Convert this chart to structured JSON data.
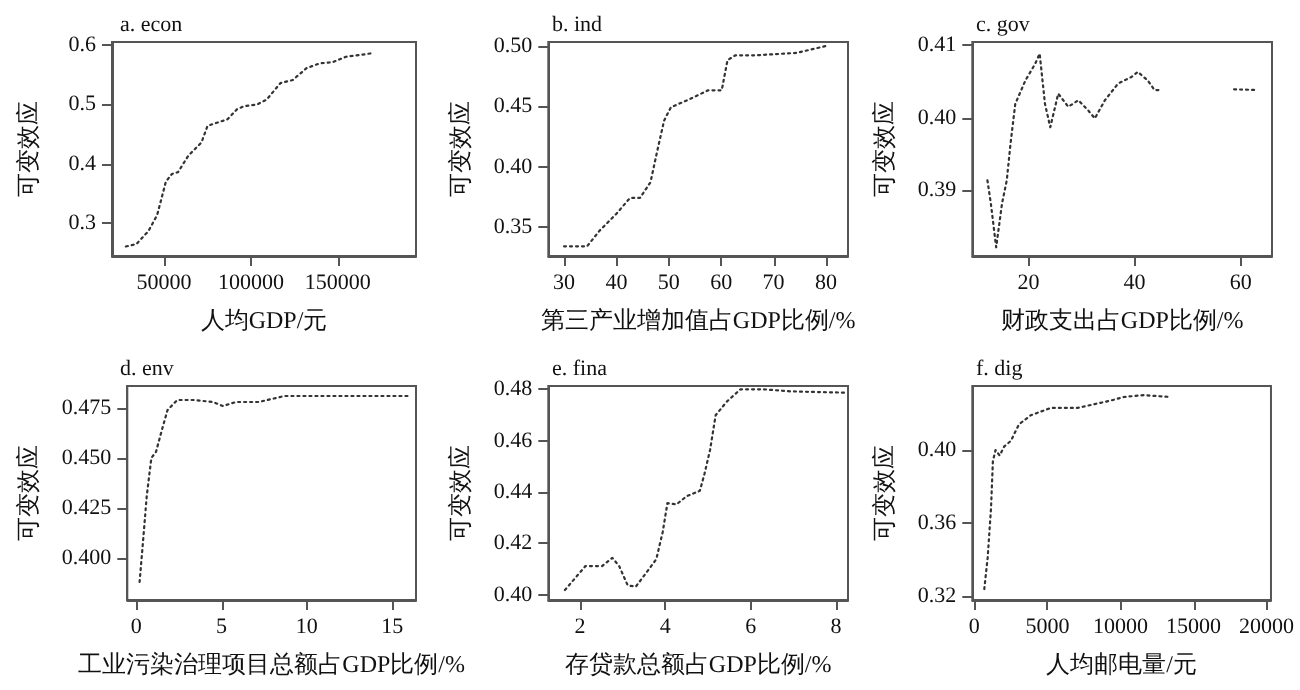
{
  "chart_data": [
    {
      "type": "line",
      "title": "a. econ",
      "xlabel": "人均GDP/元",
      "ylabel": "可变效应",
      "xlim": [
        20000,
        195000
      ],
      "xticks": [
        50000,
        100000,
        150000
      ],
      "ylim": [
        0.245,
        0.605
      ],
      "yticks": [
        0.3,
        0.4,
        0.5,
        0.6
      ],
      "grid": false,
      "marker": "none",
      "line_style": "dotted",
      "series": [
        {
          "color": "#333333",
          "x": [
            28000,
            34000,
            41000,
            46000,
            51000,
            54500,
            58000,
            64000,
            71500,
            75000,
            86500,
            92000,
            96000,
            103500,
            109000,
            117000,
            124000,
            132000,
            139500,
            147000,
            154500,
            169500
          ],
          "values": [
            0.261,
            0.265,
            0.287,
            0.314,
            0.37,
            0.383,
            0.386,
            0.414,
            0.436,
            0.464,
            0.475,
            0.492,
            0.497,
            0.5,
            0.508,
            0.536,
            0.541,
            0.561,
            0.569,
            0.571,
            0.58,
            0.586
          ]
        }
      ]
    },
    {
      "type": "line",
      "title": "b. ind",
      "xlabel": "第三产业增加值占GDP比例/%",
      "ylabel": "可变效应",
      "xlim": [
        27,
        84.2
      ],
      "xticks": [
        30,
        40,
        50,
        60,
        70,
        80
      ],
      "ylim": [
        0.326,
        0.503
      ],
      "yticks": [
        0.35,
        {
          "value": 0.4,
          "label": "0.40"
        },
        0.45,
        {
          "value": 0.5,
          "label": "0.50"
        }
      ],
      "grid": false,
      "marker": "none",
      "line_style": "dotted",
      "series": [
        {
          "color": "#333333",
          "x": [
            30,
            34.4,
            36.8,
            40,
            42.6,
            44.5,
            46.5,
            47.8,
            49.1,
            50.4,
            53.6,
            57.5,
            60.1,
            61.2,
            62.7,
            66.6,
            70.5,
            74.4,
            80.3
          ],
          "values": [
            0.334,
            0.334,
            0.347,
            0.361,
            0.374,
            0.374,
            0.387,
            0.413,
            0.438,
            0.449,
            0.455,
            0.463,
            0.463,
            0.488,
            0.492,
            0.492,
            0.493,
            0.494,
            0.5
          ]
        }
      ]
    },
    {
      "type": "line",
      "title": "c. gov",
      "xlabel": "财政支出占GDP比例/%",
      "ylabel": "可变效应",
      "xlim": [
        9.4,
        65.9
      ],
      "xticks": [
        20,
        40,
        60
      ],
      "ylim": [
        0.381,
        0.4104
      ],
      "yticks": [
        0.39,
        {
          "value": 0.4,
          "label": "0.40"
        },
        0.41
      ],
      "grid": false,
      "marker": "none",
      "line_style": "dotted",
      "series": [
        {
          "color": "#333333",
          "x": [
            12.25,
            12.9,
            13.9,
            15,
            15.9,
            16.6,
            17.5,
            19.4,
            21.25,
            22.1,
            23.1,
            24.1,
            25.6,
            27.5,
            29.4,
            31.25,
            32.5,
            34.4,
            36.9,
            39.4,
            40.6,
            42.5,
            43.75,
            45,
            52,
            58.75,
            63.1
          ],
          "values": [
            0.3914,
            0.3882,
            0.3822,
            0.3882,
            0.3914,
            0.3964,
            0.4019,
            0.4051,
            0.4074,
            0.4088,
            0.4019,
            0.3987,
            0.4033,
            0.4015,
            0.4024,
            0.401,
            0.3999,
            0.4024,
            0.4047,
            0.4056,
            0.4063,
            0.4051,
            0.4038,
            0.4038,
            null,
            0.4039,
            0.4038
          ]
        }
      ]
    },
    {
      "type": "line",
      "title": "d. env",
      "xlabel": "工业污染治理项目总额占GDP比例/%",
      "ylabel": "可变效应",
      "xlim": [
        -0.53,
        16.4
      ],
      "xticks": [
        0,
        5,
        10,
        15
      ],
      "ylim": [
        0.379,
        0.486
      ],
      "yticks": [
        {
          "value": 0.4,
          "label": "0.400"
        },
        0.425,
        {
          "value": 0.45,
          "label": "0.450"
        },
        0.475
      ],
      "grid": false,
      "marker": "none",
      "line_style": "dotted",
      "series": [
        {
          "color": "#333333",
          "x": [
            0.19,
            0.38,
            0.61,
            0.88,
            1.15,
            1.53,
            1.83,
            2.4,
            3.36,
            4.5,
            5.08,
            5.84,
            7.18,
            8.7,
            11.4,
            16
          ],
          "values": [
            0.388,
            0.407,
            0.431,
            0.45,
            0.453,
            0.465,
            0.474,
            0.479,
            0.479,
            0.478,
            0.476,
            0.478,
            0.478,
            0.481,
            0.481,
            0.481
          ]
        }
      ]
    },
    {
      "type": "line",
      "title": "e. fina",
      "xlabel": "存贷款总额占GDP比例/%",
      "ylabel": "可变效应",
      "xlim": [
        1.26,
        8.28
      ],
      "xticks": [
        2,
        4,
        6,
        8
      ],
      "ylim": [
        0.398,
        0.4813
      ],
      "yticks": [
        {
          "value": 0.4,
          "label": "0.40"
        },
        0.42,
        0.44,
        0.46,
        0.48
      ],
      "grid": false,
      "marker": "none",
      "line_style": "dotted",
      "series": [
        {
          "color": "#333333",
          "x": [
            1.65,
            2.13,
            2.52,
            2.76,
            2.92,
            3.12,
            3.31,
            3.55,
            3.79,
            3.94,
            4.05,
            4.26,
            4.5,
            4.81,
            4.92,
            5.05,
            5.18,
            5.44,
            5.76,
            6.31,
            6.94,
            8.21
          ],
          "values": [
            0.4019,
            0.4112,
            0.4112,
            0.4144,
            0.4112,
            0.4037,
            0.4032,
            0.4085,
            0.4139,
            0.4245,
            0.4357,
            0.4352,
            0.4384,
            0.4405,
            0.4472,
            0.4565,
            0.4699,
            0.4752,
            0.48,
            0.48,
            0.4792,
            0.4787
          ]
        }
      ]
    },
    {
      "type": "line",
      "title": "f. dig",
      "xlabel": "人均邮电量/元",
      "ylabel": "可变效应",
      "xlim": [
        -140,
        20300
      ],
      "xticks": [
        0,
        5000,
        10000,
        15000,
        20000
      ],
      "ylim": [
        0.318,
        0.435
      ],
      "yticks": [
        0.32,
        0.36,
        {
          "value": 0.4,
          "label": "0.40"
        }
      ],
      "grid": false,
      "marker": "none",
      "line_style": "dotted",
      "series": [
        {
          "color": "#333333",
          "x": [
            680,
            910,
            1140,
            1270,
            1450,
            1730,
            2050,
            2500,
            3050,
            3860,
            5230,
            7050,
            8180,
            9320,
            10230,
            11590,
            13410
          ],
          "values": [
            0.324,
            0.341,
            0.368,
            0.394,
            0.4,
            0.397,
            0.402,
            0.405,
            0.414,
            0.419,
            0.423,
            0.423,
            0.425,
            0.427,
            0.429,
            0.43,
            0.429
          ]
        }
      ]
    }
  ]
}
